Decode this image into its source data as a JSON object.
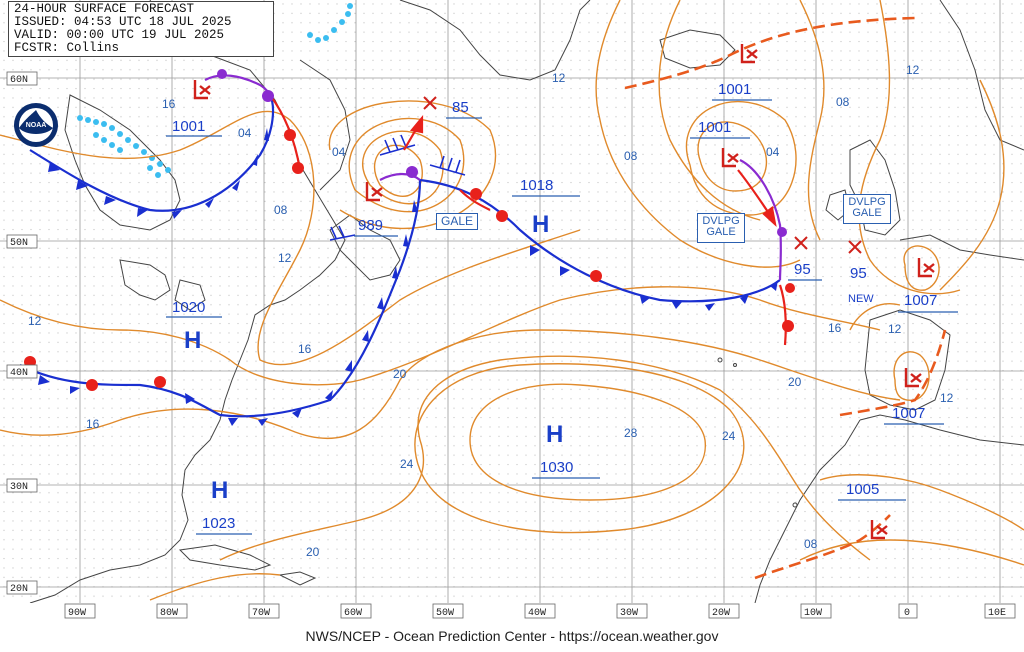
{
  "header": {
    "line1": "24-HOUR SURFACE FORECAST",
    "line2": "ISSUED: 04:53 UTC 18 JUL 2025",
    "line3": "VALID:  00:00 UTC 19 JUL 2025",
    "line4": "FCSTR:  Collins"
  },
  "footer": "NWS/NCEP - Ocean Prediction Center - https://ocean.weather.gov",
  "lat_labels": [
    "60N",
    "50N",
    "40N",
    "30N",
    "20N"
  ],
  "lon_labels": [
    "90W",
    "80W",
    "70W",
    "60W",
    "50W",
    "40W",
    "30W",
    "20W",
    "10W",
    "0",
    "10E"
  ],
  "pressure_centers": {
    "high_1020": {
      "symbol": "H",
      "value": "1020"
    },
    "high_1023": {
      "symbol": "H",
      "value": "1023"
    },
    "high_1030": {
      "symbol": "H",
      "value": "1030"
    },
    "high_1018": {
      "symbol": "H",
      "value": "1018"
    },
    "low_1001_west": {
      "value": "1001"
    },
    "low_989": {
      "value": "989"
    },
    "low_1001_north": {
      "value": "1001"
    },
    "low_1001_mid": {
      "value": "1001"
    },
    "low_1007_uk": {
      "value": "1007"
    },
    "low_1007_iberia": {
      "value": "1007"
    },
    "low_1005_africa": {
      "value": "1005"
    }
  },
  "future_positions": {
    "pos_85": "85",
    "pos_95_a": "95",
    "pos_95_b": "95",
    "pos_new": "NEW"
  },
  "warnings": {
    "gale_west": "GALE",
    "dvlpg_gale_east_1": "DVLPG",
    "dvlpg_gale_east_2": "GALE",
    "dvlpg_gale_uk_1": "DVLPG",
    "dvlpg_gale_uk_2": "GALE"
  },
  "isobar_labels": [
    "04",
    "08",
    "12",
    "12",
    "16",
    "20",
    "24",
    "28",
    "20",
    "24",
    "16",
    "12",
    "08",
    "04",
    "12",
    "16",
    "12",
    "20",
    "08",
    "04",
    "12",
    "08",
    "16"
  ],
  "colors": {
    "isobar": "#e08a2c",
    "label": "#2a5fb0",
    "cold_front": "#1a2fd0",
    "warm_front": "#e8211b",
    "occluded": "#8a2bd0",
    "ice_edge": "#3bbdf0",
    "low_symbol": "#d0211b",
    "coast": "#444444",
    "grid": "#9a9a9a"
  },
  "logo_text": "NOAA"
}
